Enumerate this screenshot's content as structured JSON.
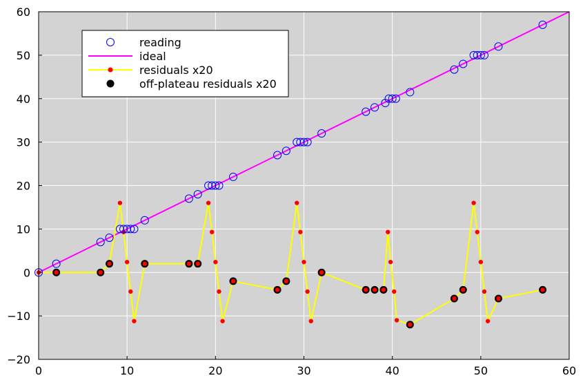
{
  "chart_data": {
    "type": "line",
    "xlim": [
      0,
      60
    ],
    "ylim": [
      -20,
      60
    ],
    "x_ticks": [
      "0",
      "10",
      "20",
      "30",
      "40",
      "50",
      "60"
    ],
    "y_ticks": [
      "−20",
      "−10",
      "0",
      "10",
      "20",
      "30",
      "40",
      "50",
      "60"
    ],
    "x_tick_values": [
      0,
      10,
      20,
      30,
      40,
      50,
      60
    ],
    "y_tick_values": [
      -20,
      -10,
      0,
      10,
      20,
      30,
      40,
      50,
      60
    ],
    "grid": true,
    "plot_background": "#d3d3d3",
    "legend_position": "top-left",
    "series": [
      {
        "name": "reading",
        "style": "open-circle",
        "color": "#0000ff",
        "x": [
          0,
          2,
          7,
          8,
          9.2,
          9.6,
          10,
          10.4,
          10.8,
          12,
          17,
          18,
          19.2,
          19.6,
          20,
          20.4,
          22,
          27,
          28,
          29.2,
          29.6,
          30,
          30.4,
          32,
          37,
          38,
          39.2,
          39.6,
          40,
          40.4,
          42,
          47,
          48,
          49.2,
          49.6,
          50,
          50.4,
          52,
          57
        ],
        "y": [
          0,
          2,
          7,
          8,
          10,
          10,
          10,
          10,
          10,
          12,
          17,
          18,
          20,
          20,
          20,
          20,
          22,
          27,
          28,
          30,
          30,
          30,
          30,
          32,
          37,
          38,
          39,
          40,
          40,
          40,
          41.5,
          46.7,
          48,
          50,
          50,
          50,
          50,
          52,
          57
        ]
      },
      {
        "name": "ideal",
        "style": "line",
        "color": "#ff00ff",
        "x": [
          0,
          60
        ],
        "y": [
          0,
          60
        ]
      },
      {
        "name": "residuals x20",
        "style": "line-with-dots",
        "color": "#ffff00",
        "marker_color": "#ff0000",
        "x": [
          0,
          2,
          7,
          8,
          9.2,
          9.6,
          10,
          10.4,
          10.8,
          12,
          17,
          18,
          19.2,
          19.6,
          20,
          20.4,
          20.8,
          22,
          27,
          28,
          29.2,
          29.6,
          30,
          30.4,
          30.8,
          32,
          37,
          38,
          39,
          39.5,
          39.8,
          40.2,
          40.5,
          42,
          47,
          48,
          49.2,
          49.6,
          50,
          50.4,
          50.8,
          52,
          57
        ],
        "y": [
          0,
          0,
          0,
          2,
          16,
          9.3,
          2.4,
          -4.4,
          -11.2,
          2,
          2,
          2,
          16,
          9.3,
          2.4,
          -4.4,
          -11.2,
          -2,
          -4,
          -2,
          16,
          9.3,
          2.4,
          -4.4,
          -11.2,
          0,
          -4,
          -4,
          -4,
          9.3,
          2.4,
          -4.4,
          -11,
          -12,
          -6,
          -4,
          16,
          9.3,
          2.4,
          -4.4,
          -11.2,
          -6,
          -4
        ]
      },
      {
        "name": "off-plateau residuals x20",
        "style": "filled-circle",
        "color": "#000000",
        "x": [
          2,
          7,
          8,
          12,
          17,
          18,
          22,
          27,
          28,
          32,
          37,
          38,
          39,
          42,
          47,
          48,
          52,
          57
        ],
        "y": [
          0,
          0,
          2,
          2,
          2,
          2,
          -2,
          -4,
          -2,
          0,
          -4,
          -4,
          -4,
          -12,
          -6,
          -4,
          -6,
          -4
        ]
      }
    ]
  }
}
